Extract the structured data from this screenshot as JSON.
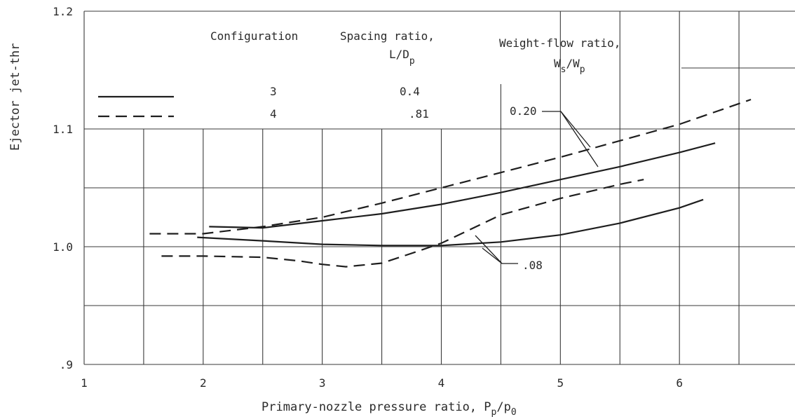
{
  "chart_data": {
    "type": "line",
    "xlabel": "Primary-nozzle pressure ratio, P",
    "xlabel_sub1": "p",
    "xlabel_slash": "/p",
    "xlabel_sub2": "0",
    "ylabel": "Ejector jet-thr",
    "xlim": [
      1,
      7
    ],
    "ylim": [
      0.9,
      1.2
    ],
    "x_ticks": [
      {
        "v": 1,
        "label": "1"
      },
      {
        "v": 2,
        "label": "2"
      },
      {
        "v": 3,
        "label": "3"
      },
      {
        "v": 4,
        "label": "4"
      },
      {
        "v": 5,
        "label": "5"
      },
      {
        "v": 6,
        "label": "6"
      }
    ],
    "y_ticks": [
      {
        "v": 0.9,
        "label": ".9"
      },
      {
        "v": 1.0,
        "label": "1.0"
      },
      {
        "v": 1.1,
        "label": "1.1"
      },
      {
        "v": 1.2,
        "label": "1.2"
      }
    ],
    "grid_x": [
      1.5,
      2,
      2.5,
      3,
      3.5,
      4,
      4.5,
      5,
      5.5,
      6,
      6.5,
      7
    ],
    "grid_y": [
      0.95,
      1.0,
      1.05,
      1.1
    ],
    "legend": {
      "col_configuration": "Configuration",
      "col_spacing": "Spacing ratio,",
      "col_spacing_sub": "L/D",
      "col_spacing_sub_p": "p",
      "col_weight": "Weight-flow ratio,",
      "col_weight_sub_w1": "W",
      "col_weight_sub_s": "s",
      "col_weight_sub_slash": "/W",
      "col_weight_sub_p": "p",
      "rows": [
        {
          "style": "solid",
          "configuration": "3",
          "spacing": "0.4"
        },
        {
          "style": "dashed",
          "configuration": "4",
          "spacing": ".81"
        }
      ]
    },
    "annotations": [
      {
        "label": "0.20",
        "ref": "upper curves"
      },
      {
        "label": ".08",
        "ref": "lower curves"
      }
    ],
    "series": [
      {
        "style": "solid",
        "group": "0.20",
        "x": [
          2.05,
          2.5,
          3.0,
          3.5,
          4.0,
          4.5,
          5.0,
          5.5,
          6.0,
          6.3
        ],
        "y": [
          1.017,
          1.016,
          1.022,
          1.028,
          1.036,
          1.046,
          1.057,
          1.068,
          1.08,
          1.088
        ]
      },
      {
        "style": "dashed",
        "group": "0.20",
        "x": [
          1.55,
          2.0,
          2.5,
          3.0,
          3.5,
          4.0,
          4.5,
          5.0,
          5.5,
          6.0,
          6.6
        ],
        "y": [
          1.011,
          1.011,
          1.017,
          1.025,
          1.037,
          1.05,
          1.063,
          1.076,
          1.09,
          1.104,
          1.125
        ]
      },
      {
        "style": "solid",
        "group": ".08",
        "x": [
          1.95,
          2.5,
          3.0,
          3.5,
          4.0,
          4.5,
          5.0,
          5.5,
          6.0,
          6.2
        ],
        "y": [
          1.008,
          1.005,
          1.002,
          1.001,
          1.001,
          1.004,
          1.01,
          1.02,
          1.033,
          1.04
        ]
      },
      {
        "style": "dashed",
        "group": ".08",
        "x": [
          1.65,
          2.0,
          2.5,
          2.8,
          3.0,
          3.2,
          3.5,
          3.8,
          4.0,
          4.5,
          5.0,
          5.5,
          5.7
        ],
        "y": [
          0.992,
          0.992,
          0.991,
          0.988,
          0.985,
          0.983,
          0.986,
          0.996,
          1.003,
          1.027,
          1.041,
          1.053,
          1.057
        ]
      }
    ]
  }
}
